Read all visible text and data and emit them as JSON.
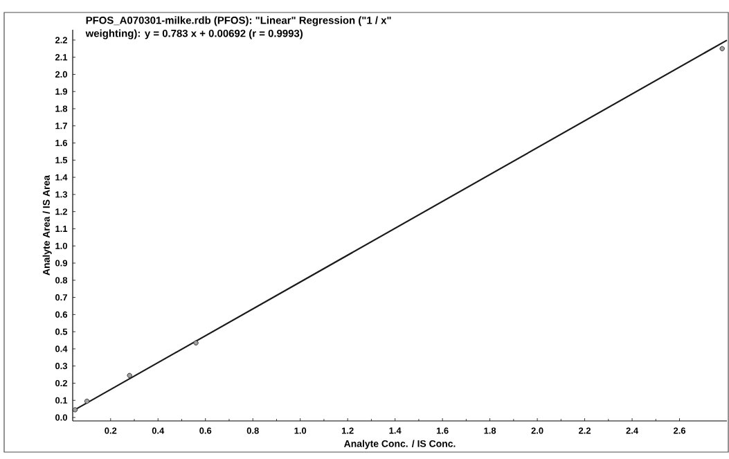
{
  "chart_data": {
    "type": "scatter",
    "title": "PFOS_A070301-milke.rdb (PFOS): \"Linear\" Regression (\"1 / x\"\nweighting): y = 0.783 x + 0.00692 (r = 0.9993)",
    "xlabel": "Analyte Conc. / IS Conc.",
    "ylabel": "Analyte Area / IS Area",
    "series": [
      {
        "color": "#333333",
        "marker": "circle",
        "x": [
          0.05,
          0.1,
          0.28,
          0.56,
          2.78
        ],
        "values": [
          0.045,
          0.095,
          0.245,
          0.435,
          2.15
        ]
      },
      {
        "type": "line",
        "color": "#1a1a1a",
        "marker": "none",
        "x": [
          0.04,
          2.8
        ],
        "values": [
          0.038,
          2.199
        ]
      }
    ],
    "xlim": [
      0.04,
      2.8
    ],
    "ylim": [
      -0.02,
      2.26
    ],
    "xticks": [
      {
        "value": 0.2,
        "label": "0.2"
      },
      {
        "value": 0.4,
        "label": "0.4"
      },
      {
        "value": 0.6,
        "label": "0.6"
      },
      {
        "value": 0.8,
        "label": "0.8"
      },
      {
        "value": 1.0,
        "label": "1.0"
      },
      {
        "value": 1.2,
        "label": "1.2"
      },
      {
        "value": 1.4,
        "label": "1.4"
      },
      {
        "value": 1.6,
        "label": "1.6"
      },
      {
        "value": 1.8,
        "label": "1.8"
      },
      {
        "value": 2.0,
        "label": "2.0"
      },
      {
        "value": 2.2,
        "label": "2.2"
      },
      {
        "value": 2.4,
        "label": "2.4"
      },
      {
        "value": 2.6,
        "label": "2.6"
      }
    ],
    "yticks": [
      {
        "value": 0.0,
        "label": "0.0"
      },
      {
        "value": 0.1,
        "label": "0.1"
      },
      {
        "value": 0.2,
        "label": "0.2"
      },
      {
        "value": 0.3,
        "label": "0.3"
      },
      {
        "value": 0.4,
        "label": "0.4"
      },
      {
        "value": 0.5,
        "label": "0.5"
      },
      {
        "value": 0.6,
        "label": "0.6"
      },
      {
        "value": 0.7,
        "label": "0.7"
      },
      {
        "value": 0.8,
        "label": "0.8"
      },
      {
        "value": 0.9,
        "label": "0.9"
      },
      {
        "value": 1.0,
        "label": "1.0"
      },
      {
        "value": 1.1,
        "label": "1.1"
      },
      {
        "value": 1.2,
        "label": "1.2"
      },
      {
        "value": 1.3,
        "label": "1.3"
      },
      {
        "value": 1.4,
        "label": "1.4"
      },
      {
        "value": 1.5,
        "label": "1.5"
      },
      {
        "value": 1.6,
        "label": "1.6"
      },
      {
        "value": 1.7,
        "label": "1.7"
      },
      {
        "value": 1.8,
        "label": "1.8"
      },
      {
        "value": 1.9,
        "label": "1.9"
      },
      {
        "value": 2.0,
        "label": "2.0"
      },
      {
        "value": 2.1,
        "label": "2.1"
      },
      {
        "value": 2.2,
        "label": "2.2"
      }
    ],
    "grid": false
  }
}
